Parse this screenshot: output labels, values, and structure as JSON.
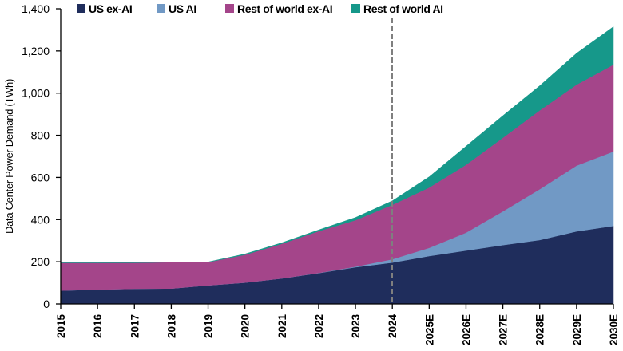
{
  "chart_data": {
    "type": "area",
    "stacked": true,
    "title": "",
    "xlabel": "",
    "ylabel": "Data Center Power Demand (TWh)",
    "ylim": [
      0,
      1400
    ],
    "yticks": [
      0,
      200,
      400,
      600,
      800,
      1000,
      1200,
      1400
    ],
    "ytick_labels": [
      "0",
      "200",
      "400",
      "600",
      "800",
      "1,000",
      "1,200",
      "1,400"
    ],
    "grid": false,
    "legend_position": "top",
    "categories": [
      "2015",
      "2016",
      "2017",
      "2018",
      "2019",
      "2020",
      "2021",
      "2022",
      "2023",
      "2024",
      "2025E",
      "2026E",
      "2027E",
      "2028E",
      "2029E",
      "2030E"
    ],
    "annotations": [
      {
        "type": "vertical-dashed-line",
        "x": "2024"
      }
    ],
    "series": [
      {
        "name": "US ex-AI",
        "color": "#1f2d5c",
        "values": [
          63,
          68,
          72,
          73,
          88,
          101,
          121,
          146,
          174,
          196,
          227,
          253,
          279,
          303,
          344,
          370
        ]
      },
      {
        "name": "US AI",
        "color": "#7199c5",
        "values": [
          0,
          0,
          0,
          0,
          0,
          0,
          0,
          1,
          3,
          16,
          39,
          85,
          160,
          241,
          312,
          353
        ]
      },
      {
        "name": "Rest of world ex-AI",
        "color": "#a4458a",
        "values": [
          132,
          127,
          123,
          125,
          110,
          132,
          164,
          198,
          220,
          258,
          286,
          322,
          349,
          374,
          384,
          412
        ]
      },
      {
        "name": "Rest of world AI",
        "color": "#16988a",
        "values": [
          0,
          0,
          1,
          1,
          1,
          4,
          5,
          6,
          13,
          19,
          51,
          88,
          105,
          117,
          149,
          180
        ]
      }
    ]
  }
}
